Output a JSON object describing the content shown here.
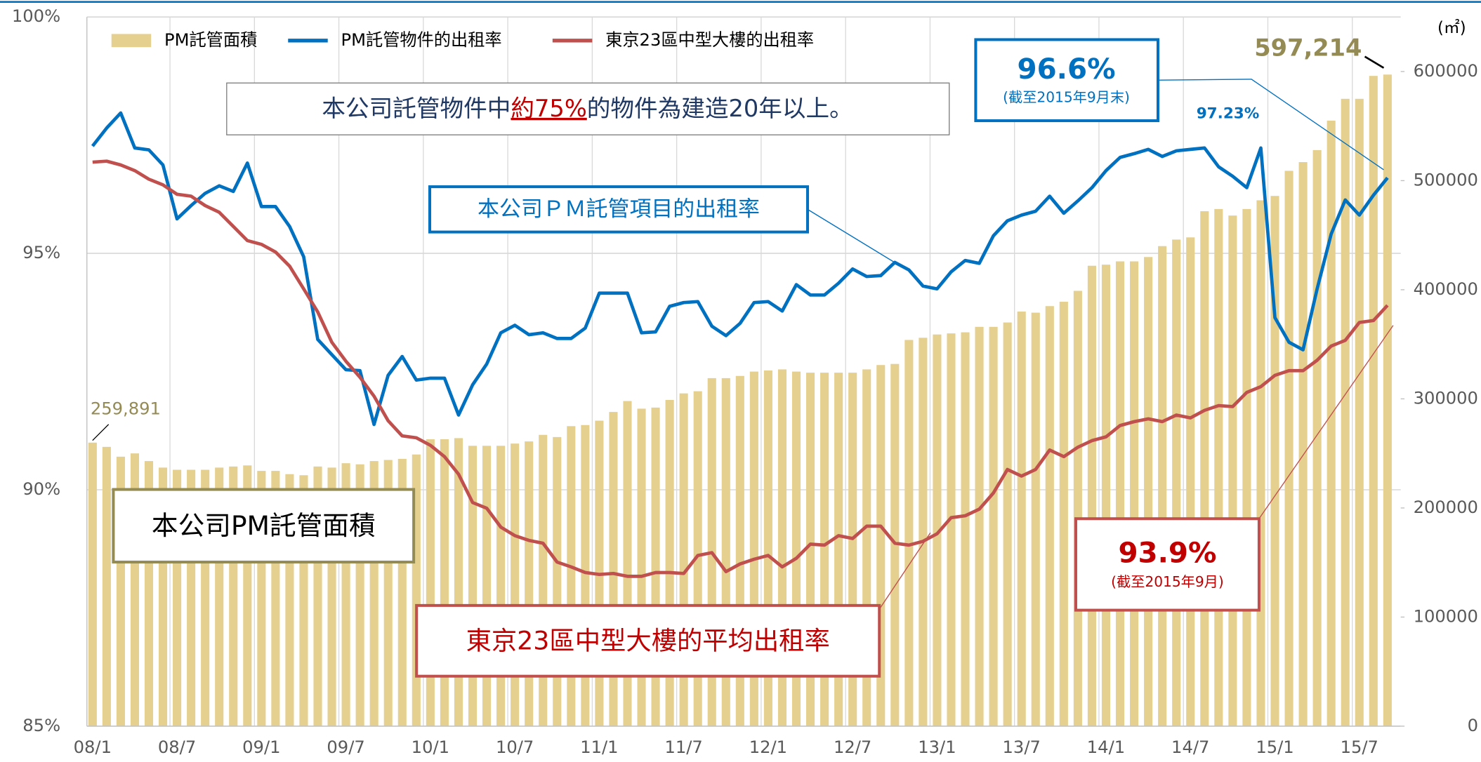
{
  "chart_data": {
    "type": "bar",
    "categories": [
      "08/1",
      null,
      null,
      null,
      null,
      null,
      "08/7",
      null,
      null,
      null,
      null,
      null,
      "09/1",
      null,
      null,
      null,
      null,
      null,
      "09/7",
      null,
      null,
      null,
      null,
      null,
      "10/1",
      null,
      null,
      null,
      null,
      null,
      "10/7",
      null,
      null,
      null,
      null,
      null,
      "11/1",
      null,
      null,
      null,
      null,
      null,
      "11/7",
      null,
      null,
      null,
      null,
      null,
      "12/1",
      null,
      null,
      null,
      null,
      null,
      "12/7",
      null,
      null,
      null,
      null,
      null,
      "13/1",
      null,
      null,
      null,
      null,
      null,
      "13/7",
      null,
      null,
      null,
      null,
      null,
      "14/1",
      null,
      null,
      null,
      null,
      null,
      "14/7",
      null,
      null,
      null,
      null,
      null,
      "15/1",
      null,
      null,
      null,
      null,
      null,
      "15/7",
      null,
      null
    ],
    "series": [
      {
        "name": "PM託管面積",
        "type": "bar",
        "axis": "y2",
        "color": "#e6d08f",
        "values": [
          259891,
          256000,
          247000,
          250000,
          243000,
          237000,
          235000,
          235000,
          235000,
          237000,
          238000,
          239000,
          234000,
          234000,
          231000,
          230000,
          238000,
          237000,
          241000,
          240000,
          243000,
          244000,
          245000,
          249000,
          263000,
          263000,
          264000,
          257000,
          257000,
          257000,
          259000,
          261000,
          267000,
          265000,
          275000,
          276000,
          280000,
          288000,
          298000,
          291000,
          292000,
          299000,
          305000,
          307000,
          319000,
          319000,
          321000,
          325000,
          326000,
          327000,
          325000,
          324000,
          324000,
          324000,
          324000,
          327000,
          331000,
          332000,
          354000,
          356000,
          359000,
          360000,
          361000,
          366000,
          366000,
          370000,
          380000,
          379000,
          385000,
          389000,
          399000,
          422000,
          423000,
          426000,
          426000,
          430000,
          440000,
          446000,
          448000,
          472000,
          474000,
          468000,
          474000,
          482000,
          486000,
          509000,
          517000,
          528000,
          555000,
          575000,
          575000,
          596000,
          597214
        ],
        "value_labels": [
          "259,891",
          null,
          null,
          null,
          null,
          null,
          null,
          null,
          null,
          null,
          null,
          null,
          null,
          null,
          null,
          null,
          null,
          null,
          null,
          null,
          null,
          null,
          null,
          null,
          null,
          null,
          null,
          null,
          null,
          null,
          null,
          null,
          null,
          null,
          null,
          null,
          null,
          null,
          null,
          null,
          null,
          null,
          null,
          null,
          null,
          null,
          null,
          null,
          null,
          null,
          null,
          null,
          null,
          null,
          null,
          null,
          null,
          null,
          null,
          null,
          null,
          null,
          null,
          null,
          null,
          null,
          null,
          null,
          null,
          null,
          null,
          null,
          null,
          null,
          null,
          null,
          null,
          null,
          null,
          null,
          null,
          null,
          null,
          null,
          null,
          null,
          null,
          null,
          null,
          null,
          null,
          null,
          "597,214"
        ]
      },
      {
        "name": "PM託管物件的出租率",
        "type": "line",
        "color": "#0070c0",
        "values": [
          97.27,
          97.65,
          97.97,
          97.23,
          97.19,
          96.87,
          95.73,
          96.01,
          96.27,
          96.43,
          96.31,
          96.91,
          95.99,
          95.99,
          95.57,
          94.93,
          93.18,
          92.86,
          92.54,
          92.52,
          91.38,
          92.42,
          92.82,
          92.32,
          92.36,
          92.36,
          91.58,
          92.22,
          92.66,
          93.32,
          93.48,
          93.28,
          93.32,
          93.2,
          93.2,
          93.42,
          94.16,
          94.16,
          94.16,
          93.32,
          93.34,
          93.88,
          93.96,
          93.98,
          93.46,
          93.26,
          93.52,
          93.96,
          93.98,
          93.78,
          94.34,
          94.12,
          94.12,
          94.37,
          94.67,
          94.51,
          94.53,
          94.81,
          94.65,
          94.31,
          94.25,
          94.61,
          94.85,
          94.79,
          95.37,
          95.69,
          95.81,
          95.89,
          96.21,
          95.85,
          96.11,
          96.39,
          96.75,
          97.03,
          97.11,
          97.2,
          97.05,
          97.17,
          97.2,
          97.23,
          96.83,
          96.63,
          96.39,
          97.23,
          93.64,
          93.12,
          92.96,
          94.25,
          95.41,
          96.13,
          95.81,
          96.23,
          96.6
        ],
        "value_labels": [
          null,
          null,
          null,
          null,
          null,
          null,
          null,
          null,
          null,
          null,
          null,
          null,
          null,
          null,
          null,
          null,
          null,
          null,
          null,
          null,
          null,
          null,
          null,
          null,
          null,
          null,
          null,
          null,
          null,
          null,
          null,
          null,
          null,
          null,
          null,
          null,
          null,
          null,
          null,
          null,
          null,
          null,
          null,
          null,
          null,
          null,
          null,
          null,
          null,
          null,
          null,
          null,
          null,
          null,
          null,
          null,
          null,
          null,
          null,
          null,
          null,
          null,
          null,
          null,
          null,
          null,
          null,
          null,
          null,
          null,
          null,
          null,
          null,
          null,
          null,
          null,
          null,
          null,
          null,
          "97.23%",
          null,
          null,
          null,
          null,
          null,
          null,
          null,
          null,
          null,
          null,
          null,
          null,
          "96.6%"
        ]
      },
      {
        "name": "東京23區中型大樓的出租率",
        "type": "line",
        "color": "#c0504d",
        "values": [
          96.93,
          96.95,
          96.87,
          96.75,
          96.57,
          96.45,
          96.25,
          96.21,
          96.01,
          95.87,
          95.57,
          95.27,
          95.19,
          95.03,
          94.73,
          94.25,
          93.76,
          93.12,
          92.72,
          92.38,
          91.98,
          91.46,
          91.14,
          91.1,
          90.94,
          90.7,
          90.33,
          89.73,
          89.61,
          89.21,
          89.03,
          88.93,
          88.87,
          88.47,
          88.37,
          88.25,
          88.21,
          88.23,
          88.17,
          88.17,
          88.25,
          88.25,
          88.23,
          88.61,
          88.67,
          88.27,
          88.43,
          88.53,
          88.61,
          88.37,
          88.55,
          88.85,
          88.83,
          89.03,
          88.97,
          89.23,
          89.23,
          88.87,
          88.83,
          88.91,
          89.07,
          89.41,
          89.45,
          89.59,
          89.93,
          90.43,
          90.29,
          90.43,
          90.84,
          90.7,
          90.9,
          91.04,
          91.12,
          91.36,
          91.44,
          91.5,
          91.44,
          91.58,
          91.52,
          91.68,
          91.78,
          91.76,
          92.06,
          92.18,
          92.42,
          92.52,
          92.52,
          92.74,
          93.04,
          93.16,
          93.54,
          93.58,
          93.9
        ],
        "value_labels": [
          null,
          null,
          null,
          null,
          null,
          null,
          null,
          null,
          null,
          null,
          null,
          null,
          null,
          null,
          null,
          null,
          null,
          null,
          null,
          null,
          null,
          null,
          null,
          null,
          null,
          null,
          null,
          null,
          null,
          null,
          null,
          null,
          null,
          null,
          null,
          null,
          null,
          null,
          null,
          null,
          null,
          null,
          null,
          null,
          null,
          null,
          null,
          null,
          null,
          null,
          null,
          null,
          null,
          null,
          null,
          null,
          null,
          null,
          null,
          null,
          null,
          null,
          null,
          null,
          null,
          null,
          null,
          null,
          null,
          null,
          null,
          null,
          null,
          null,
          null,
          null,
          null,
          null,
          null,
          null,
          null,
          null,
          null,
          null,
          null,
          null,
          null,
          null,
          null,
          null,
          null,
          null,
          "93.9%"
        ]
      }
    ],
    "ylim": [
      85,
      100
    ],
    "yticks": [
      {
        "value": 85,
        "label": "85%"
      },
      {
        "value": 90,
        "label": "90%"
      },
      {
        "value": 95,
        "label": "95%"
      },
      {
        "value": 100,
        "label": "100%"
      }
    ],
    "y2lim": [
      0,
      650000
    ],
    "y2ticks": [
      0,
      100000,
      200000,
      300000,
      400000,
      500000,
      600000
    ],
    "y2_unit": "(㎡)",
    "grid": true,
    "legend": "top-left",
    "annotations": {
      "note_before": "本公司託管物件中",
      "note_highlight": "約75%",
      "note_after": "的物件為建造20年以上。",
      "pm_rate_label": "本公司ＰＭ託管項目的出租率",
      "pm_area_label": "本公司PM託管面積",
      "tokyo_rate_label": "東京23區中型大樓的平均出租率",
      "pm_rate_date": "(截至2015年9月末)",
      "tokyo_rate_date": "(截至2015年9月)"
    }
  }
}
